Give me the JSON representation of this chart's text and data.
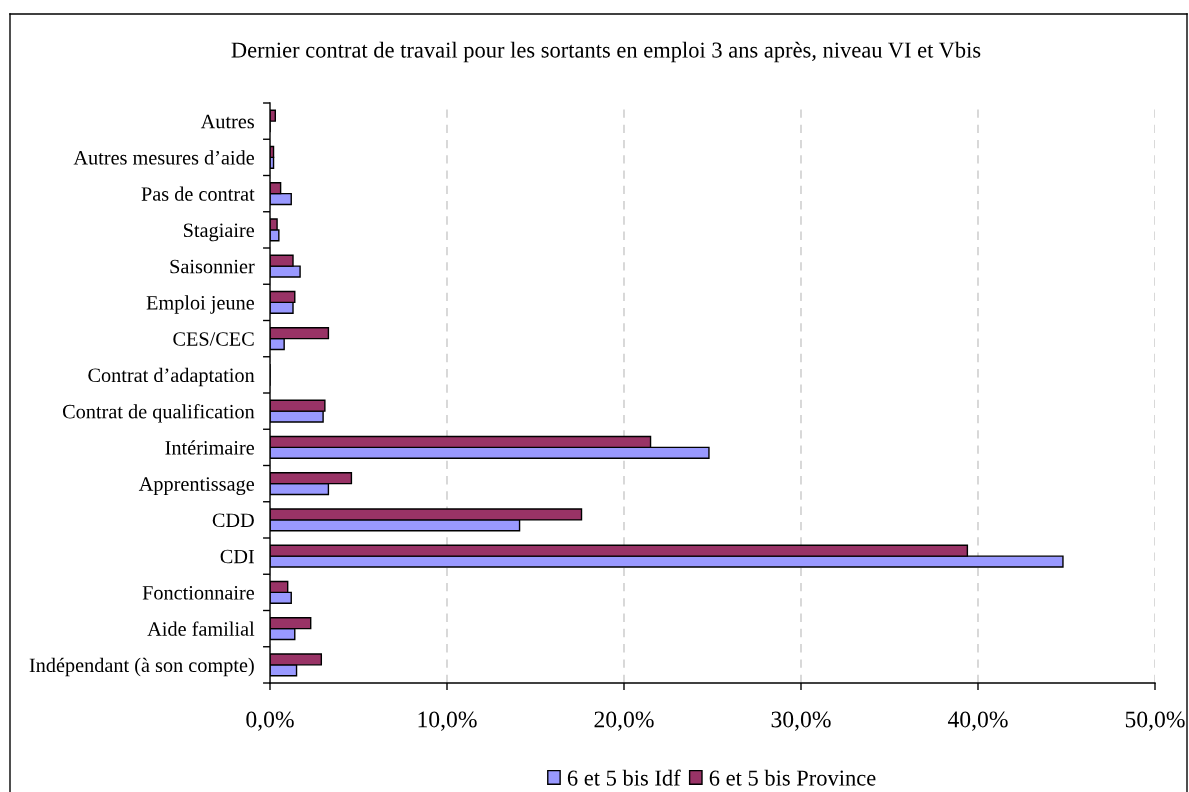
{
  "chart_data": {
    "type": "bar",
    "orientation": "horizontal",
    "title": "Dernier contrat de travail pour les sortants en emploi 3 ans après, niveau VI et Vbis",
    "categories": [
      "Autres",
      "Autres mesures d’aide",
      "Pas de contrat",
      "Stagiaire",
      "Saisonnier",
      "Emploi jeune",
      "CES/CEC",
      "Contrat d’adaptation",
      "Contrat de qualification",
      "Intérimaire",
      "Apprentissage",
      "CDD",
      "CDI",
      "Fonctionnaire",
      "Aide familial",
      "Indépendant (à son compte)"
    ],
    "series": [
      {
        "name": "6 et 5 bis Idf",
        "color": "#9999ff",
        "values": [
          0,
          0.2,
          1.2,
          0.5,
          1.7,
          1.3,
          0.8,
          0,
          3.0,
          24.8,
          3.3,
          14.1,
          44.8,
          1.2,
          1.4,
          1.5
        ]
      },
      {
        "name": "6 et 5 bis Province",
        "color": "#993366",
        "values": [
          0.3,
          0.2,
          0.6,
          0.4,
          1.3,
          1.4,
          3.3,
          0,
          3.1,
          21.5,
          4.6,
          17.6,
          39.4,
          1.0,
          2.3,
          2.9
        ]
      }
    ],
    "xlim": [
      0,
      50
    ],
    "xticks": [
      {
        "value": 0,
        "label": "0,0%"
      },
      {
        "value": 10,
        "label": "10,0%"
      },
      {
        "value": 20,
        "label": "20,0%"
      },
      {
        "value": 30,
        "label": "30,0%"
      },
      {
        "value": 40,
        "label": "40,0%"
      },
      {
        "value": 50,
        "label": "50,0%"
      }
    ],
    "grid": "x",
    "legend": "bottom"
  }
}
